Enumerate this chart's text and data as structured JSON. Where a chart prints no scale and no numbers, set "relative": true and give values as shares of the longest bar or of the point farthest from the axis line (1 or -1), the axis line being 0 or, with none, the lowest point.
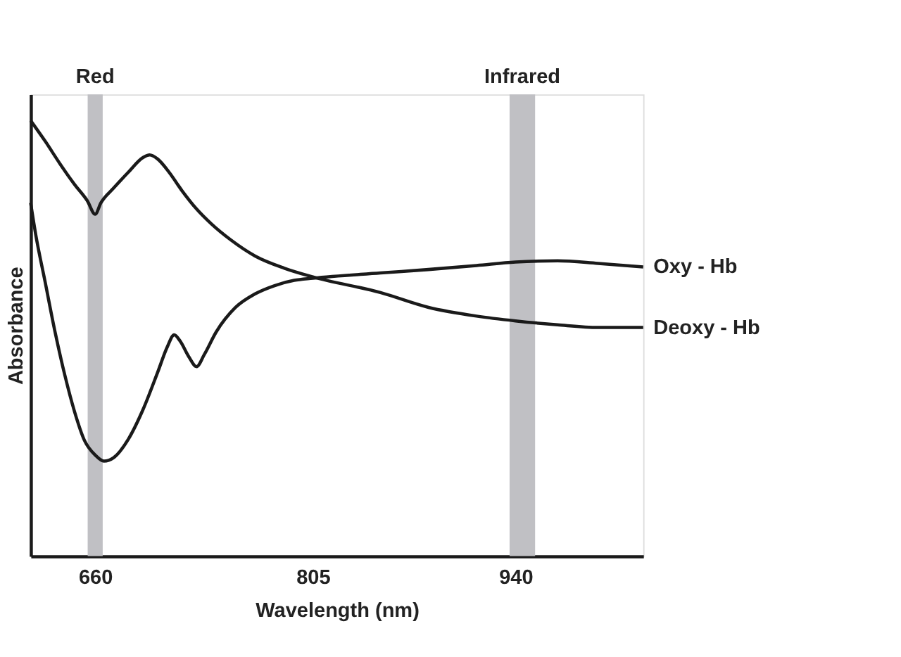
{
  "chart_data": {
    "type": "line",
    "relative": true,
    "xlabel": "Wavelength (nm)",
    "ylabel": "Absorbance",
    "xlim": [
      617,
      1025
    ],
    "xticks": [
      660,
      805,
      940
    ],
    "grid": false,
    "marker": "none",
    "line_style": "solid",
    "tick_labels": "x",
    "bands": [
      {
        "axis": "x",
        "from": 655,
        "to": 665,
        "label": "Red",
        "color": "#c0c0c4"
      },
      {
        "axis": "x",
        "from": 936,
        "to": 953,
        "label": "Infrared",
        "color": "#c0c0c4"
      }
    ],
    "series": [
      {
        "name": "Deoxy - Hb",
        "color": "#1a1a1a",
        "x": [
          617,
          626.8,
          636.5,
          646.3,
          654.7,
          660,
          663.8,
          672.3,
          682,
          691.8,
          696.3,
          701.5,
          709.3,
          717.8,
          727.5,
          737.3,
          750.3,
          766.5,
          786,
          805,
          850,
          882,
          914,
          940,
          968,
          995,
          1025
        ],
        "values": [
          1.0,
          0.952,
          0.901,
          0.853,
          0.816,
          0.785,
          0.811,
          0.845,
          0.881,
          0.915,
          0.921,
          0.912,
          0.881,
          0.839,
          0.797,
          0.763,
          0.726,
          0.689,
          0.661,
          0.641,
          0.605,
          0.571,
          0.551,
          0.54,
          0.531,
          0.525,
          0.525
        ]
      },
      {
        "name": "Oxy - Hb",
        "color": "#1a1a1a",
        "x": [
          617,
          620.3,
          626.8,
          633.3,
          639.8,
          646.3,
          652.8,
          660,
          665.8,
          672.3,
          682,
          691.8,
          701.5,
          708,
          712.6,
          716.5,
          722.3,
          727.5,
          732.7,
          740.5,
          753.5,
          766.5,
          779.5,
          792.5,
          805,
          850,
          882,
          914,
          940,
          968,
          995,
          1025
        ],
        "values": [
          0.811,
          0.74,
          0.627,
          0.514,
          0.415,
          0.331,
          0.266,
          0.232,
          0.218,
          0.226,
          0.268,
          0.336,
          0.421,
          0.48,
          0.508,
          0.494,
          0.458,
          0.435,
          0.463,
          0.514,
          0.571,
          0.602,
          0.621,
          0.633,
          0.638,
          0.65,
          0.658,
          0.667,
          0.675,
          0.678,
          0.672,
          0.664
        ]
      }
    ]
  }
}
